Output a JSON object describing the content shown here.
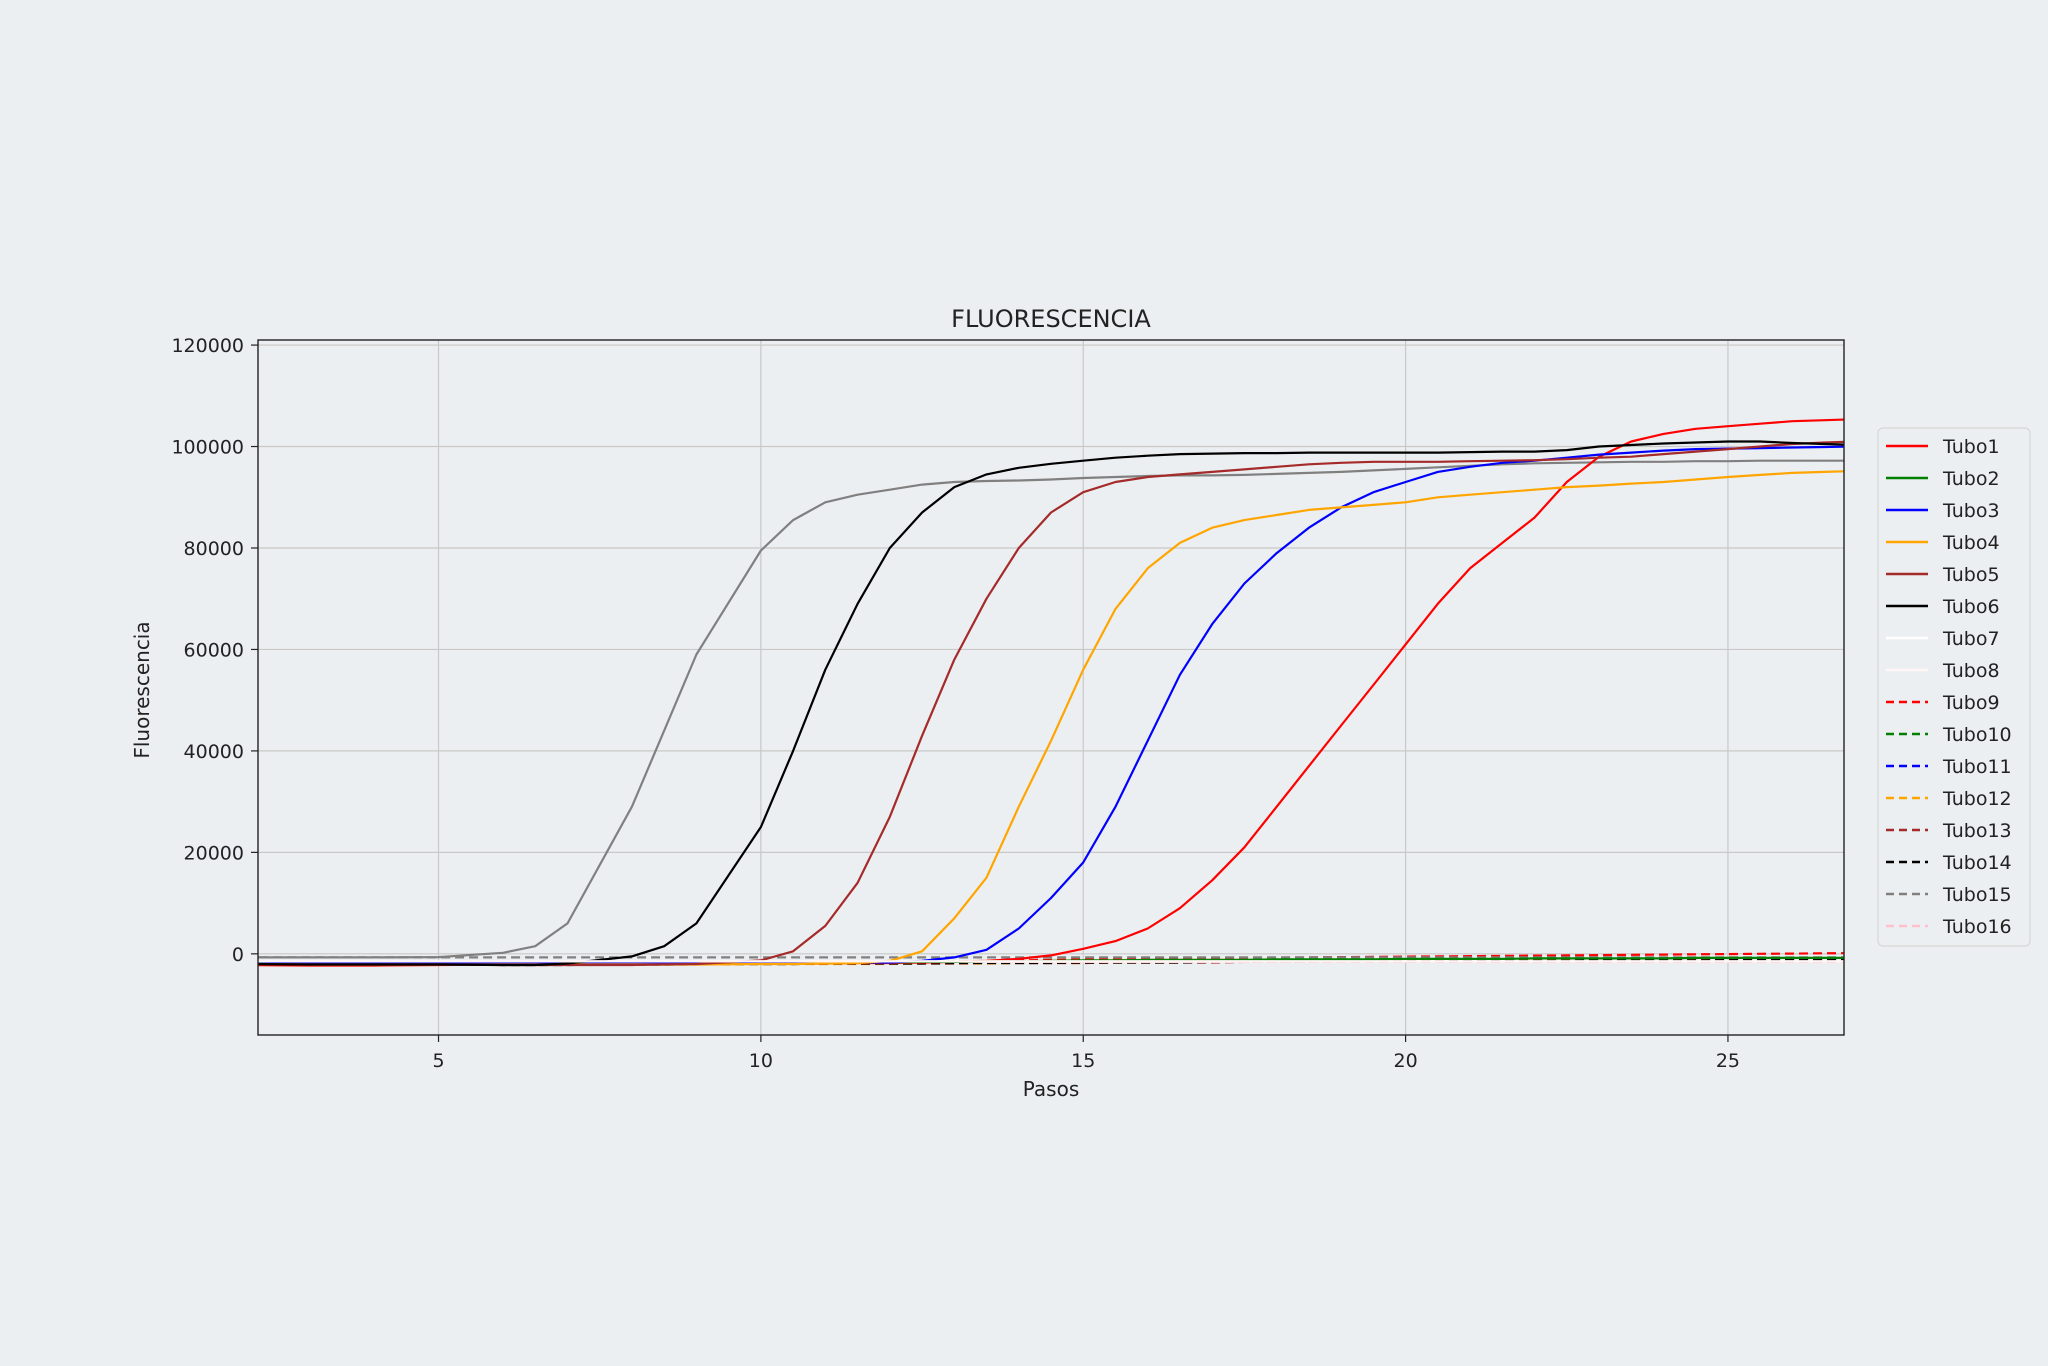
{
  "chart_data": {
    "type": "line",
    "title": "FLUORESCENCIA",
    "xlabel": "Pasos",
    "ylabel": "Fluorescencia",
    "xlim": [
      2.2,
      26.8
    ],
    "ylim": [
      -16000,
      121000
    ],
    "xticks": [
      5,
      10,
      15,
      20,
      25
    ],
    "yticks": [
      0,
      20000,
      40000,
      60000,
      80000,
      100000,
      120000
    ],
    "grid": true,
    "legend_position": "right",
    "x": [
      2,
      3,
      4,
      5,
      6,
      6.5,
      7,
      8,
      8.5,
      9,
      10,
      10.5,
      11,
      11.5,
      12,
      12.5,
      13,
      13.5,
      14,
      14.5,
      15,
      15.5,
      16,
      16.5,
      17,
      17.5,
      18,
      18.5,
      19,
      19.5,
      20,
      20.5,
      21,
      21.5,
      22,
      22.5,
      23,
      23.5,
      24,
      24.5,
      25,
      25.5,
      26,
      26.5,
      27
    ],
    "series": [
      {
        "name": "Tubo1",
        "color": "#ff0000",
        "dash": "solid",
        "values": [
          -2200,
          -2300,
          -2300,
          -2200,
          -2100,
          -2000,
          -2000,
          -2000,
          -2000,
          -1900,
          -1900,
          -1900,
          -1900,
          -1800,
          -1800,
          -1700,
          -1600,
          -1400,
          -1000,
          -300,
          1000,
          2500,
          5000,
          9000,
          14500,
          21000,
          29000,
          37000,
          45000,
          53000,
          61000,
          69000,
          76000,
          81000,
          86000,
          93000,
          98000,
          101000,
          102500,
          103500,
          104000,
          104500,
          105000,
          105200,
          105400
        ]
      },
      {
        "name": "Tubo2",
        "color": "#008000",
        "dash": "solid",
        "values": [
          -1800,
          -1900,
          -1900,
          -1800,
          -1800,
          -1800,
          -1800,
          -1700,
          -1700,
          -1700,
          -1700,
          -1700,
          -1700,
          -1700,
          -1700,
          -1600,
          -1600,
          -1500,
          -1500,
          -1400,
          -1300,
          -1300,
          -1200,
          -1200,
          -1200,
          -1200,
          -1100,
          -1100,
          -1100,
          -1100,
          -1000,
          -1000,
          -1000,
          -1000,
          -900,
          -900,
          -900,
          -900,
          -900,
          -800,
          -800,
          -800,
          -800,
          -800,
          -800
        ]
      },
      {
        "name": "Tubo3",
        "color": "#0000ff",
        "dash": "solid",
        "values": [
          -1500,
          -1700,
          -1800,
          -1800,
          -1800,
          -1800,
          -1800,
          -1800,
          -1800,
          -1800,
          -1800,
          -1800,
          -1700,
          -1700,
          -1700,
          -1400,
          -700,
          800,
          5000,
          11000,
          18000,
          29000,
          42000,
          55000,
          65000,
          73000,
          79000,
          84000,
          88000,
          91000,
          93000,
          95000,
          96000,
          96800,
          97200,
          97800,
          98400,
          98800,
          99200,
          99500,
          99600,
          99700,
          99800,
          99900,
          100000
        ]
      },
      {
        "name": "Tubo4",
        "color": "#ffa500",
        "dash": "solid",
        "values": [
          -2000,
          -2100,
          -2100,
          -2100,
          -2100,
          -2100,
          -2100,
          -2100,
          -2100,
          -2100,
          -2000,
          -2000,
          -1900,
          -1800,
          -1400,
          500,
          7000,
          15000,
          29000,
          42000,
          56000,
          68000,
          76000,
          81000,
          84000,
          85500,
          86500,
          87500,
          88000,
          88500,
          89000,
          90000,
          90500,
          91000,
          91500,
          92000,
          92300,
          92700,
          93000,
          93500,
          94000,
          94400,
          94800,
          95000,
          95200
        ]
      },
      {
        "name": "Tubo5",
        "color": "#a52a2a",
        "dash": "solid",
        "values": [
          -2000,
          -2100,
          -2100,
          -2100,
          -2200,
          -2200,
          -2200,
          -2200,
          -2100,
          -2000,
          -1300,
          500,
          5500,
          14000,
          27000,
          43000,
          58000,
          70000,
          80000,
          87000,
          91000,
          93000,
          94000,
          94500,
          95000,
          95500,
          96000,
          96500,
          96800,
          97000,
          97000,
          97000,
          97100,
          97200,
          97300,
          97500,
          97800,
          98000,
          98500,
          99000,
          99500,
          100000,
          100500,
          100800,
          101000
        ]
      },
      {
        "name": "Tubo6",
        "color": "#000000",
        "dash": "solid",
        "values": [
          -2000,
          -2100,
          -2100,
          -2100,
          -2200,
          -2200,
          -1900,
          -500,
          1500,
          6000,
          25000,
          40000,
          56000,
          69000,
          80000,
          87000,
          92000,
          94500,
          95800,
          96600,
          97200,
          97800,
          98200,
          98500,
          98600,
          98700,
          98700,
          98800,
          98800,
          98800,
          98800,
          98800,
          98900,
          99000,
          99000,
          99300,
          100000,
          100300,
          100600,
          100800,
          101000,
          101000,
          100700,
          100500,
          100300
        ]
      },
      {
        "name": "Tubo7",
        "color": "#ffffff",
        "dash": "solid",
        "values": [
          -1500,
          -1500,
          -1500,
          -1500,
          -1500,
          -1500,
          -1500,
          -1500,
          -1500,
          -1500,
          -1500,
          -1500,
          -1500,
          -1500,
          -1500,
          -1500,
          -1500,
          -1500,
          -1500,
          -1500,
          -1500,
          -1500,
          -1500,
          -1500,
          -1500,
          -1500,
          -1500,
          -1500,
          -1500,
          -1500,
          -1500,
          -1500,
          -1500,
          -1500,
          -1500,
          -1500,
          -1500,
          -1500,
          -1500,
          -1500,
          -1500,
          -1500,
          -1500,
          -1500,
          -1500
        ]
      },
      {
        "name": "Tubo8",
        "color": "#fff5f5",
        "dash": "solid",
        "values": [
          -1500,
          -1500,
          -1500,
          -1500,
          -1500,
          -1500,
          -1500,
          -1500,
          -1500,
          -1500,
          -1500,
          -1500,
          -1500,
          -1500,
          -1500,
          -1500,
          -1500,
          -1500,
          -1500,
          -1500,
          -1500,
          -1500,
          -1500,
          -1500,
          -1500,
          -1500,
          -1500,
          -1500,
          -1500,
          -1500,
          -1500,
          -1500,
          -1500,
          -1500,
          -1500,
          -1500,
          -1500,
          -1500,
          -1500,
          -1500,
          -1500,
          -1500,
          -1500,
          -1500,
          -1500
        ]
      },
      {
        "name": "Tubo9",
        "color": "#ff0000",
        "dash": "dashed",
        "values": [
          -2100,
          -2200,
          -2200,
          -2100,
          -2100,
          -2000,
          -2000,
          -2000,
          -1900,
          -1900,
          -1900,
          -1800,
          -1800,
          -1700,
          -1700,
          -1600,
          -1500,
          -1400,
          -1300,
          -1200,
          -1100,
          -1000,
          -950,
          -900,
          -850,
          -800,
          -750,
          -700,
          -650,
          -600,
          -550,
          -500,
          -450,
          -400,
          -350,
          -300,
          -250,
          -200,
          -150,
          -100,
          -50,
          0,
          50,
          100,
          150
        ]
      },
      {
        "name": "Tubo10",
        "color": "#008000",
        "dash": "dashed",
        "values": [
          -1800,
          -1900,
          -1900,
          -1800,
          -1800,
          -1800,
          -1800,
          -1700,
          -1700,
          -1700,
          -1700,
          -1700,
          -1700,
          -1700,
          -1700,
          -1600,
          -1600,
          -1600,
          -1500,
          -1500,
          -1500,
          -1400,
          -1400,
          -1400,
          -1300,
          -1300,
          -1300,
          -1300,
          -1200,
          -1200,
          -1200,
          -1200,
          -1100,
          -1100,
          -1100,
          -1100,
          -1000,
          -1000,
          -1000,
          -1000,
          -900,
          -900,
          -900,
          -900,
          -900
        ]
      },
      {
        "name": "Tubo11",
        "color": "#0000ff",
        "dash": "dashed",
        "values": [
          -1500,
          -1600,
          -1600,
          -1600,
          -1600,
          -1600,
          -1600,
          -1600,
          -1600,
          -1600,
          -1600,
          -1600,
          -1600,
          -1600,
          -1600,
          -1600,
          -1600,
          -1500,
          -1500,
          -1500,
          -1500,
          -1500,
          -1500,
          -1500,
          -1400,
          -1400,
          -1400,
          -1400,
          -1400,
          -1400,
          -1300,
          -1300,
          -1300,
          -1300,
          -1300,
          -1300,
          -1200,
          -1200,
          -1200,
          -1200,
          -1200,
          -1200,
          -1100,
          -1100,
          -1100
        ]
      },
      {
        "name": "Tubo12",
        "color": "#ffa500",
        "dash": "dashed",
        "values": [
          -2000,
          -2100,
          -2100,
          -2100,
          -2100,
          -2100,
          -2100,
          -2100,
          -2100,
          -2100,
          -2000,
          -2000,
          -2000,
          -2000,
          -2000,
          -1900,
          -1900,
          -1900,
          -1800,
          -1800,
          -1800,
          -1700,
          -1700,
          -1700,
          -1600,
          -1600,
          -1600,
          -1500,
          -1500,
          -1500,
          -1400,
          -1400,
          -1400,
          -1300,
          -1300,
          -1300,
          -1200,
          -1200,
          -1200,
          -1100,
          -1100,
          -1100,
          -1000,
          -1000,
          -1000
        ]
      },
      {
        "name": "Tubo13",
        "color": "#a52a2a",
        "dash": "dashed",
        "values": [
          -1900,
          -2000,
          -2000,
          -2000,
          -2000,
          -2000,
          -2000,
          -2000,
          -2000,
          -2000,
          -2000,
          -2000,
          -1900,
          -1900,
          -1900,
          -1900,
          -1900,
          -1800,
          -1800,
          -1800,
          -1800,
          -1700,
          -1700,
          -1700,
          -1700,
          -1600,
          -1600,
          -1600,
          -1600,
          -1500,
          -1500,
          -1500,
          -1500,
          -1400,
          -1400,
          -1400,
          -1400,
          -1300,
          -1300,
          -1300,
          -1300,
          -1200,
          -1200,
          -1200,
          -1200
        ]
      },
      {
        "name": "Tubo14",
        "color": "#000000",
        "dash": "dashed",
        "values": [
          -1800,
          -1900,
          -2000,
          -2100,
          -2200,
          -2200,
          -2200,
          -2100,
          -2100,
          -2000,
          -2000,
          -2000,
          -1900,
          -1900,
          -1900,
          -1900,
          -1800,
          -1800,
          -1800,
          -1800,
          -1700,
          -1700,
          -1700,
          -1700,
          -1600,
          -1600,
          -1600,
          -1600,
          -1500,
          -1500,
          -1500,
          -1500,
          -1400,
          -1400,
          -1400,
          -1400,
          -1300,
          -1300,
          -1300,
          -1300,
          -1200,
          -1200,
          -1200,
          -1200,
          -1200
        ]
      },
      {
        "name": "Tubo15",
        "color": "#808080",
        "dash": "dashed",
        "values": [
          -700,
          -700,
          -700,
          -700,
          -700,
          -700,
          -700,
          -700,
          -700,
          -700,
          -700,
          -700,
          -700,
          -700,
          -700,
          -700,
          -700,
          -700,
          -700,
          -700,
          -700,
          -700,
          -700,
          -700,
          -700,
          -700,
          -700,
          -700,
          -700,
          -700,
          -700,
          -700,
          -700,
          -700,
          -700,
          -700,
          -700,
          -700,
          -700,
          -700,
          -700,
          -700,
          -700,
          -700,
          -700
        ]
      },
      {
        "name": "Tubo16",
        "color": "#ffc0cb",
        "dash": "dashed",
        "values": [
          -1600,
          -1600,
          -1600,
          -1600,
          -1600,
          -1600,
          -1600,
          -1600,
          -1600,
          -1600,
          -1600,
          -1600,
          -1600,
          -1600,
          -1600,
          -1600,
          -1600,
          -1600,
          -1600,
          -1600,
          -1600,
          -1600,
          -1600,
          -1600,
          -1600,
          -1600,
          -1600,
          -1600,
          -1600,
          -1600,
          -1600,
          -1600,
          -1600,
          -1600,
          -1600,
          -1600,
          -1600,
          -1600,
          -1600,
          -1600,
          -1600,
          -1600,
          -1600,
          -1600,
          -1600
        ]
      },
      {
        "name": "",
        "color": "#808080",
        "dash": "solid",
        "values": [
          -700,
          -700,
          -700,
          -650,
          200,
          1500,
          6000,
          29000,
          44000,
          59000,
          79500,
          85500,
          89000,
          90500,
          91500,
          92500,
          93000,
          93200,
          93300,
          93500,
          93800,
          94000,
          94200,
          94300,
          94300,
          94400,
          94600,
          94800,
          95000,
          95300,
          95600,
          95900,
          96200,
          96500,
          96700,
          96800,
          96900,
          97000,
          97000,
          97100,
          97100,
          97200,
          97200,
          97200,
          97200
        ]
      }
    ]
  }
}
